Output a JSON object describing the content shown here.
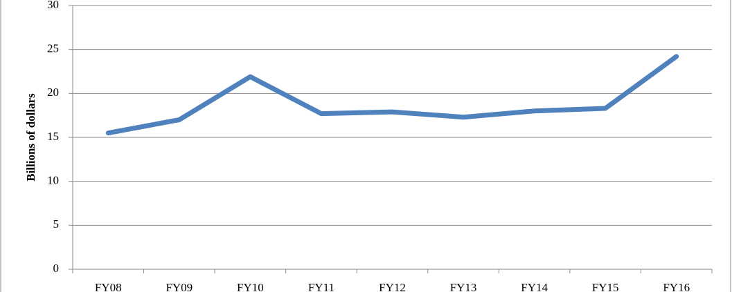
{
  "chart_data": {
    "type": "line",
    "y_label": "Billions of dollars",
    "categories": [
      "FY08",
      "FY09",
      "FY10",
      "FY11",
      "FY12",
      "FY13",
      "FY14",
      "FY15",
      "FY16"
    ],
    "series": [
      {
        "color": "#4f81bd",
        "values": [
          15.5,
          17.0,
          21.9,
          17.7,
          17.9,
          17.3,
          18.0,
          18.3,
          24.2
        ]
      }
    ],
    "ylim": [
      0,
      30
    ],
    "yticks": [
      0,
      5,
      10,
      15,
      20,
      25,
      30
    ],
    "grid": true
  }
}
